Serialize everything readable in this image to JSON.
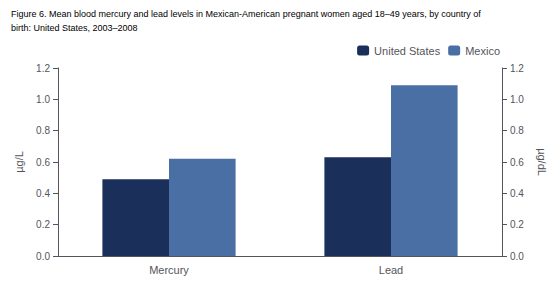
{
  "chart_data": {
    "type": "bar",
    "title": "Figure 6. Mean blood mercury and lead levels in Mexican-American pregnant women aged 18–49 years, by country of",
    "subtitle": "birth: United States, 2003–2008",
    "categories": [
      "Mercury",
      "Lead"
    ],
    "series": [
      {
        "name": "United States",
        "color": "#1a2f5a",
        "values": [
          0.49,
          0.63
        ]
      },
      {
        "name": "Mexico",
        "color": "#4a6fa5",
        "values": [
          0.62,
          1.09
        ]
      }
    ],
    "ylabel": "µg/L",
    "y2label": "µg/dL",
    "ylim": [
      0.0,
      1.2
    ],
    "yticks": [
      {
        "value": 0,
        "label": "0.0"
      },
      0.2,
      0.4,
      0.6,
      0.8,
      {
        "value": 1,
        "label": "1.0"
      },
      1.2
    ],
    "y2lim": [
      0.0,
      1.2
    ],
    "y2ticks": [
      {
        "value": 0,
        "label": "0.0"
      },
      0.2,
      0.4,
      0.6,
      0.8,
      {
        "value": 1,
        "label": "1.0"
      },
      1.2
    ],
    "grid": false,
    "legend": "upper right"
  }
}
